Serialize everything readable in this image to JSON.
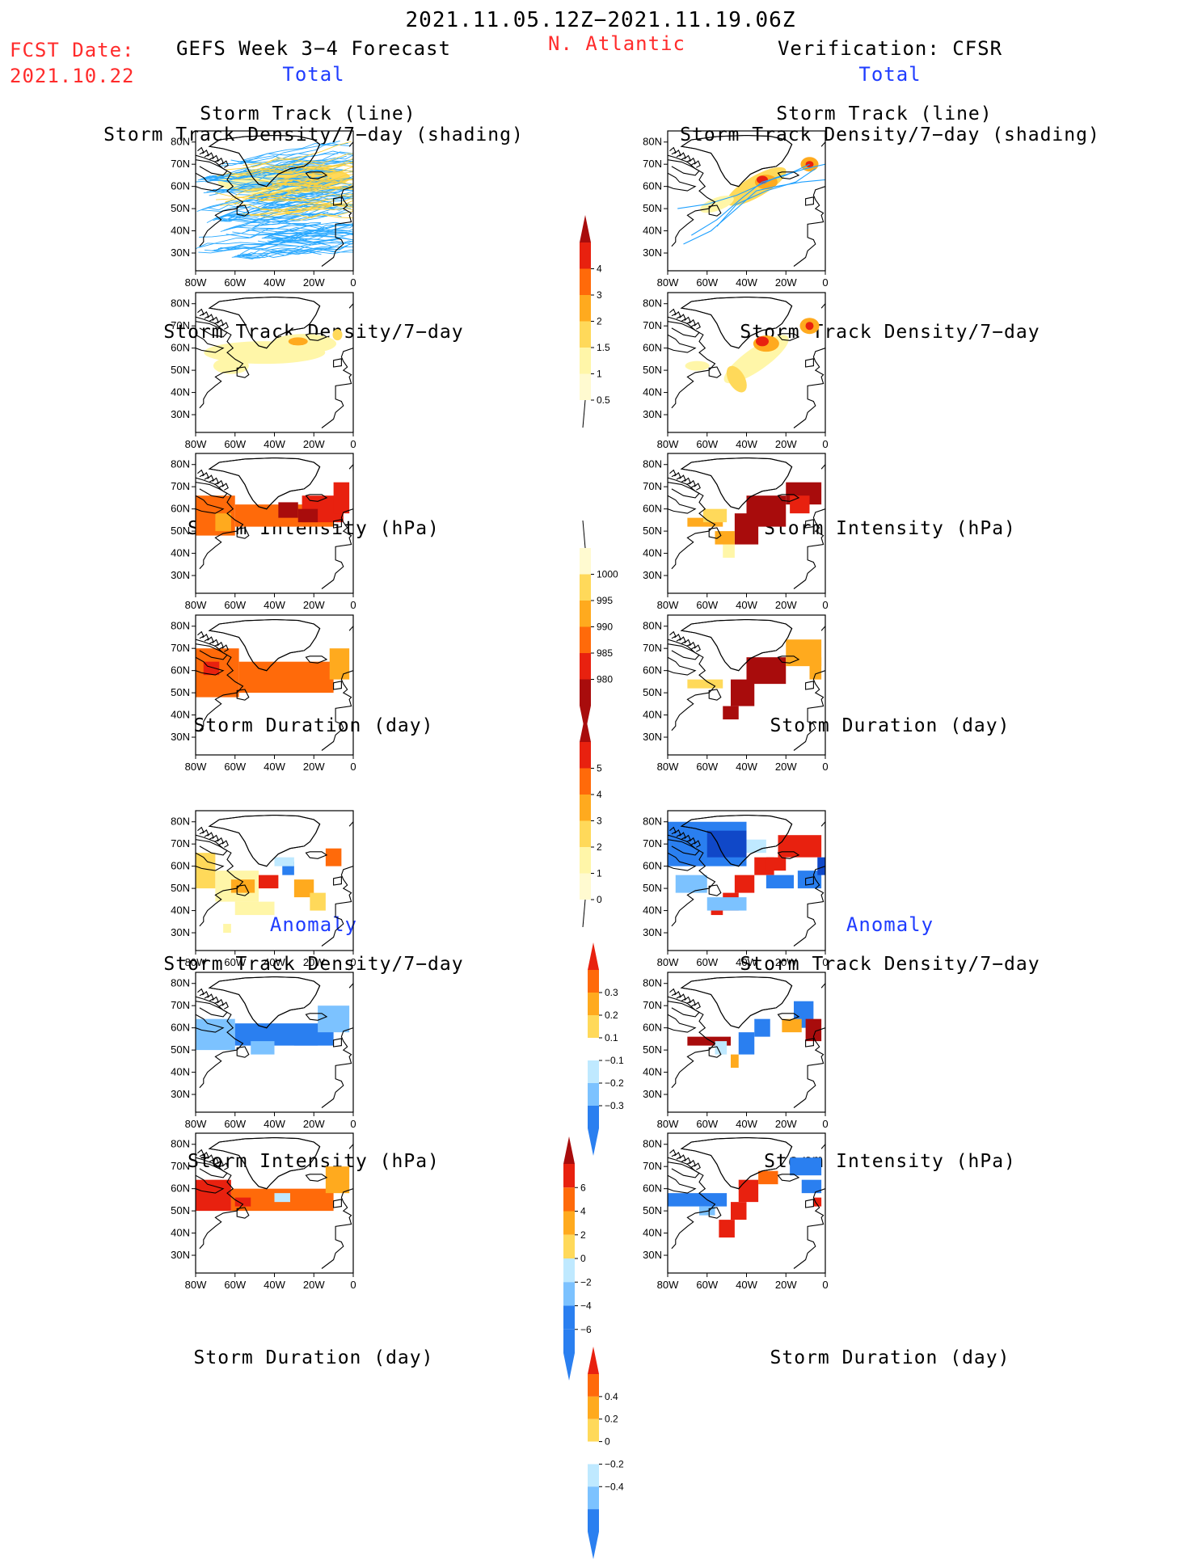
{
  "header": {
    "period": "2021.11.05.12Z−2021.11.19.06Z",
    "fcst_label": "FCST Date:",
    "fcst_date": "2021.10.22",
    "left_model": "GEFS Week 3−4 Forecast",
    "region": "N. Atlantic",
    "right_model": "Verification: CFSR"
  },
  "sections": {
    "total": "Total",
    "anomaly": "Anomaly"
  },
  "panel_titles": {
    "track_line": "Storm Track (line)",
    "track_shading": "Storm Track Density/7−day (shading)",
    "density": "Storm Track Density/7−day",
    "intensity": "Storm Intensity (hPa)",
    "duration": "Storm Duration (day)"
  },
  "axes": {
    "lat": [
      "80N",
      "70N",
      "60N",
      "50N",
      "40N",
      "30N"
    ],
    "lon": [
      "80W",
      "60W",
      "40W",
      "20W",
      "0"
    ]
  },
  "colorbars": {
    "density_total": [
      "4",
      "3",
      "2",
      "1.5",
      "1",
      "0.5"
    ],
    "intensity_total": [
      "1000",
      "995",
      "990",
      "985",
      "980"
    ],
    "duration_total": [
      "5",
      "4",
      "3",
      "2",
      "1",
      "0"
    ],
    "density_anom": [
      "0.3",
      "0.2",
      "0.1",
      "−0.1",
      "−0.2",
      "−0.3"
    ],
    "intensity_anom": [
      "6",
      "4",
      "2",
      "0",
      "−2",
      "−4",
      "−6"
    ],
    "duration_anom": [
      "0.4",
      "0.2",
      "0",
      "−0.2",
      "−0.4"
    ]
  },
  "colors": {
    "title_red": "#ff2b2b",
    "label_blue": "#1f3cff",
    "track_line": "#1ea0ff"
  }
}
